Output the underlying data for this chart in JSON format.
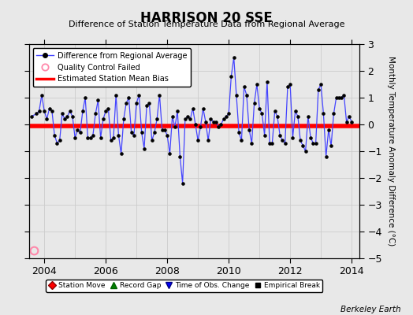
{
  "title": "HARRISON 20 SSE",
  "subtitle": "Difference of Station Temperature Data from Regional Average",
  "ylabel_right": "Monthly Temperature Anomaly Difference (°C)",
  "xlim": [
    2003.5,
    2014.25
  ],
  "ylim": [
    -5,
    3
  ],
  "yticks": [
    -5,
    -4,
    -3,
    -2,
    -1,
    0,
    1,
    2,
    3
  ],
  "xtick_years": [
    2004,
    2006,
    2008,
    2010,
    2012,
    2014
  ],
  "bias_value": -0.05,
  "background_color": "#e8e8e8",
  "plot_bg_color": "#e8e8e8",
  "line_color": "#4444ff",
  "bias_color": "#ff0000",
  "berkeley_earth_text": "Berkeley Earth",
  "qc_x": 2003.667,
  "qc_y": -4.7,
  "data_x": [
    2003.583,
    2003.75,
    2003.833,
    2003.917,
    2004.0,
    2004.083,
    2004.167,
    2004.25,
    2004.333,
    2004.417,
    2004.5,
    2004.583,
    2004.667,
    2004.75,
    2004.833,
    2004.917,
    2005.0,
    2005.083,
    2005.167,
    2005.25,
    2005.333,
    2005.417,
    2005.5,
    2005.583,
    2005.667,
    2005.75,
    2005.833,
    2005.917,
    2006.0,
    2006.083,
    2006.167,
    2006.25,
    2006.333,
    2006.417,
    2006.5,
    2006.583,
    2006.667,
    2006.75,
    2006.833,
    2006.917,
    2007.0,
    2007.083,
    2007.167,
    2007.25,
    2007.333,
    2007.417,
    2007.5,
    2007.583,
    2007.667,
    2007.75,
    2007.833,
    2007.917,
    2008.0,
    2008.083,
    2008.167,
    2008.25,
    2008.333,
    2008.417,
    2008.5,
    2008.583,
    2008.667,
    2008.75,
    2008.833,
    2008.917,
    2009.0,
    2009.083,
    2009.167,
    2009.25,
    2009.333,
    2009.417,
    2009.5,
    2009.583,
    2009.667,
    2009.75,
    2009.833,
    2009.917,
    2010.0,
    2010.083,
    2010.167,
    2010.25,
    2010.333,
    2010.417,
    2010.5,
    2010.583,
    2010.667,
    2010.75,
    2010.833,
    2010.917,
    2011.0,
    2011.083,
    2011.167,
    2011.25,
    2011.333,
    2011.417,
    2011.5,
    2011.583,
    2011.667,
    2011.75,
    2011.833,
    2011.917,
    2012.0,
    2012.083,
    2012.167,
    2012.25,
    2012.333,
    2012.417,
    2012.5,
    2012.583,
    2012.667,
    2012.75,
    2012.833,
    2012.917,
    2013.0,
    2013.083,
    2013.167,
    2013.25,
    2013.333,
    2013.417,
    2013.5,
    2013.583,
    2013.667,
    2013.75,
    2013.833,
    2013.917,
    2014.0
  ],
  "data_y": [
    0.3,
    0.4,
    0.5,
    1.1,
    0.5,
    0.2,
    0.6,
    0.5,
    -0.4,
    -0.7,
    -0.6,
    0.4,
    0.2,
    0.3,
    0.5,
    0.3,
    -0.5,
    -0.2,
    -0.3,
    0.5,
    1.0,
    -0.5,
    -0.5,
    -0.4,
    0.4,
    0.9,
    -0.5,
    0.2,
    0.5,
    0.6,
    -0.6,
    -0.5,
    1.1,
    -0.4,
    -1.1,
    0.2,
    0.8,
    1.0,
    -0.3,
    -0.4,
    0.8,
    1.1,
    -0.3,
    -0.9,
    0.7,
    0.8,
    -0.6,
    -0.3,
    0.2,
    1.1,
    -0.2,
    -0.2,
    -0.4,
    -1.1,
    0.3,
    -0.1,
    0.5,
    -1.2,
    -2.2,
    0.2,
    0.3,
    0.2,
    0.6,
    0.0,
    -0.6,
    -0.1,
    0.6,
    0.1,
    -0.6,
    0.2,
    0.1,
    0.1,
    -0.1,
    0.0,
    0.2,
    0.3,
    0.4,
    1.8,
    2.5,
    1.1,
    -0.3,
    -0.6,
    1.4,
    1.1,
    -0.2,
    -0.7,
    0.8,
    1.5,
    0.6,
    0.4,
    -0.4,
    1.6,
    -0.7,
    -0.7,
    0.5,
    0.3,
    -0.4,
    -0.6,
    -0.7,
    1.4,
    1.5,
    -0.5,
    0.5,
    0.3,
    -0.6,
    -0.8,
    -1.0,
    0.3,
    -0.5,
    -0.7,
    -0.7,
    1.3,
    1.5,
    0.4,
    -1.2,
    -0.2,
    -0.8,
    0.4,
    1.0,
    1.0,
    1.0,
    1.1,
    0.1,
    0.3,
    0.1
  ]
}
